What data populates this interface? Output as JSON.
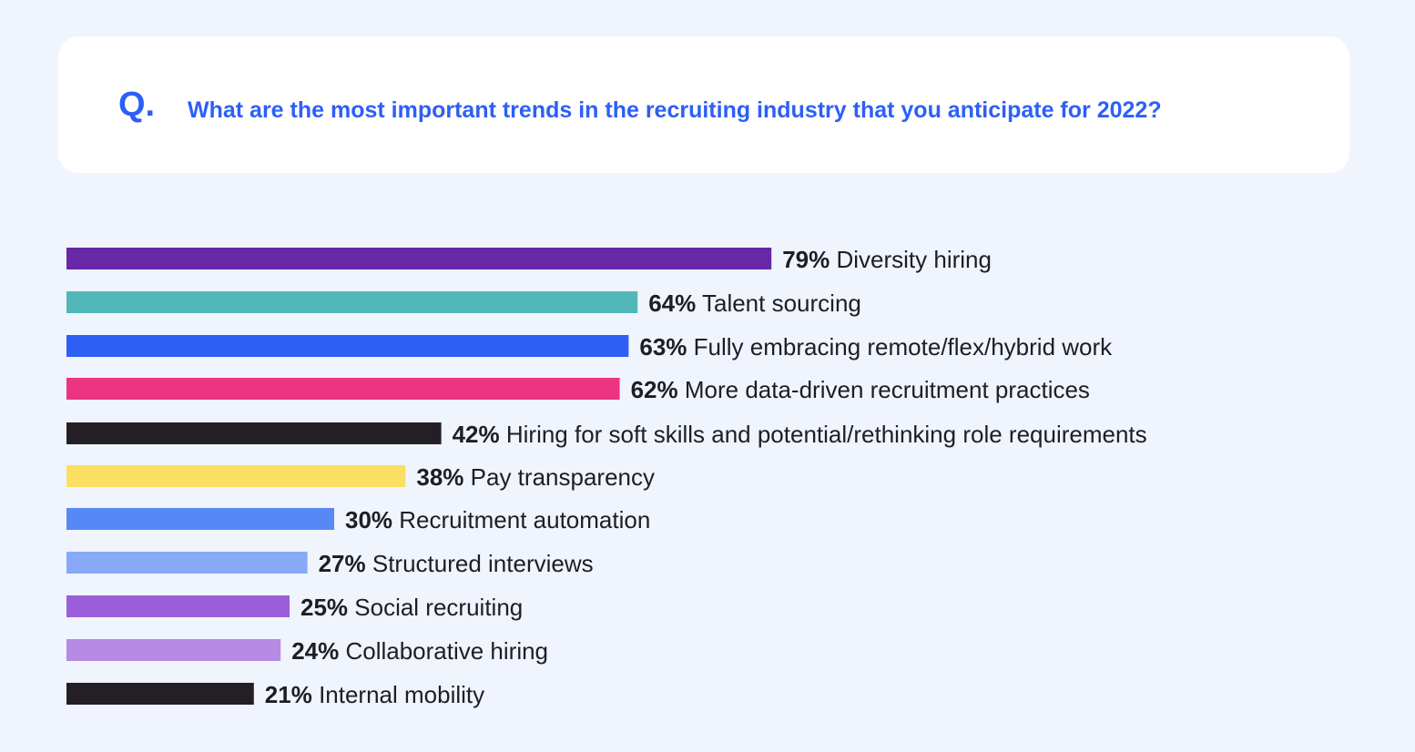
{
  "question": {
    "marker": "Q.",
    "text": "What are the most important trends in the recruiting industry that you anticipate for 2022?"
  },
  "chart_data": {
    "type": "bar",
    "orientation": "horizontal",
    "title": "What are the most important trends in the recruiting industry that you anticipate for 2022?",
    "xlim": [
      0,
      100
    ],
    "value_suffix": "%",
    "categories": [
      "Diversity hiring",
      "Talent sourcing",
      "Fully embracing remote/flex/hybrid work",
      "More data-driven recruitment practices",
      "Hiring for soft skills and potential/rethinking role requirements",
      "Pay transparency",
      "Recruitment automation",
      "Structured interviews",
      "Social recruiting",
      "Collaborative hiring",
      "Internal mobility"
    ],
    "values": [
      79,
      64,
      63,
      62,
      42,
      38,
      30,
      27,
      25,
      24,
      21
    ],
    "colors": [
      "#6628a6",
      "#52b7b8",
      "#2d5ff5",
      "#ec3580",
      "#231f24",
      "#fbdf63",
      "#5788f5",
      "#87a9f8",
      "#9b5dda",
      "#b68ae3",
      "#231f24"
    ]
  }
}
